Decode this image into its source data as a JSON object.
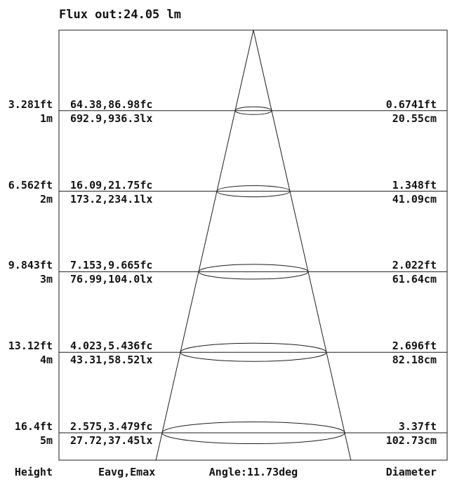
{
  "title": "Flux out:24.05 lm",
  "footer": {
    "height": "Height",
    "eavg": "Eavg,Emax",
    "angle": "Angle:11.73deg",
    "diameter": "Diameter"
  },
  "chart_data": {
    "type": "cone-diagram",
    "title": "Flux out:24.05 lm",
    "flux_out_lm": 24.05,
    "beam_angle_deg": 11.73,
    "footer_columns": [
      "Height",
      "Eavg,Emax",
      "Angle:11.73deg",
      "Diameter"
    ],
    "heights_m": [
      1,
      2,
      3,
      4,
      5
    ],
    "rows": [
      {
        "height_ft": "3.281ft",
        "height_m": "1m",
        "eavg_emax_fc": "64.38,86.98fc",
        "eavg_emax_lx": "692.9,936.3lx",
        "diameter_ft": "0.6741ft",
        "diameter_cm": "20.55cm"
      },
      {
        "height_ft": "6.562ft",
        "height_m": "2m",
        "eavg_emax_fc": "16.09,21.75fc",
        "eavg_emax_lx": "173.2,234.1lx",
        "diameter_ft": "1.348ft",
        "diameter_cm": "41.09cm"
      },
      {
        "height_ft": "9.843ft",
        "height_m": "3m",
        "eavg_emax_fc": "7.153,9.665fc",
        "eavg_emax_lx": "76.99,104.0lx",
        "diameter_ft": "2.022ft",
        "diameter_cm": "61.64cm"
      },
      {
        "height_ft": "13.12ft",
        "height_m": "4m",
        "eavg_emax_fc": "4.023,5.436fc",
        "eavg_emax_lx": "43.31,58.52lx",
        "diameter_ft": "2.696ft",
        "diameter_cm": "82.18cm"
      },
      {
        "height_ft": "16.4ft",
        "height_m": "5m",
        "eavg_emax_fc": "2.575,3.479fc",
        "eavg_emax_lx": "27.72,37.45lx",
        "diameter_ft": "3.37ft",
        "diameter_cm": "102.73cm"
      }
    ],
    "line_color": "#1d1d1d",
    "background": "#ffffff"
  }
}
